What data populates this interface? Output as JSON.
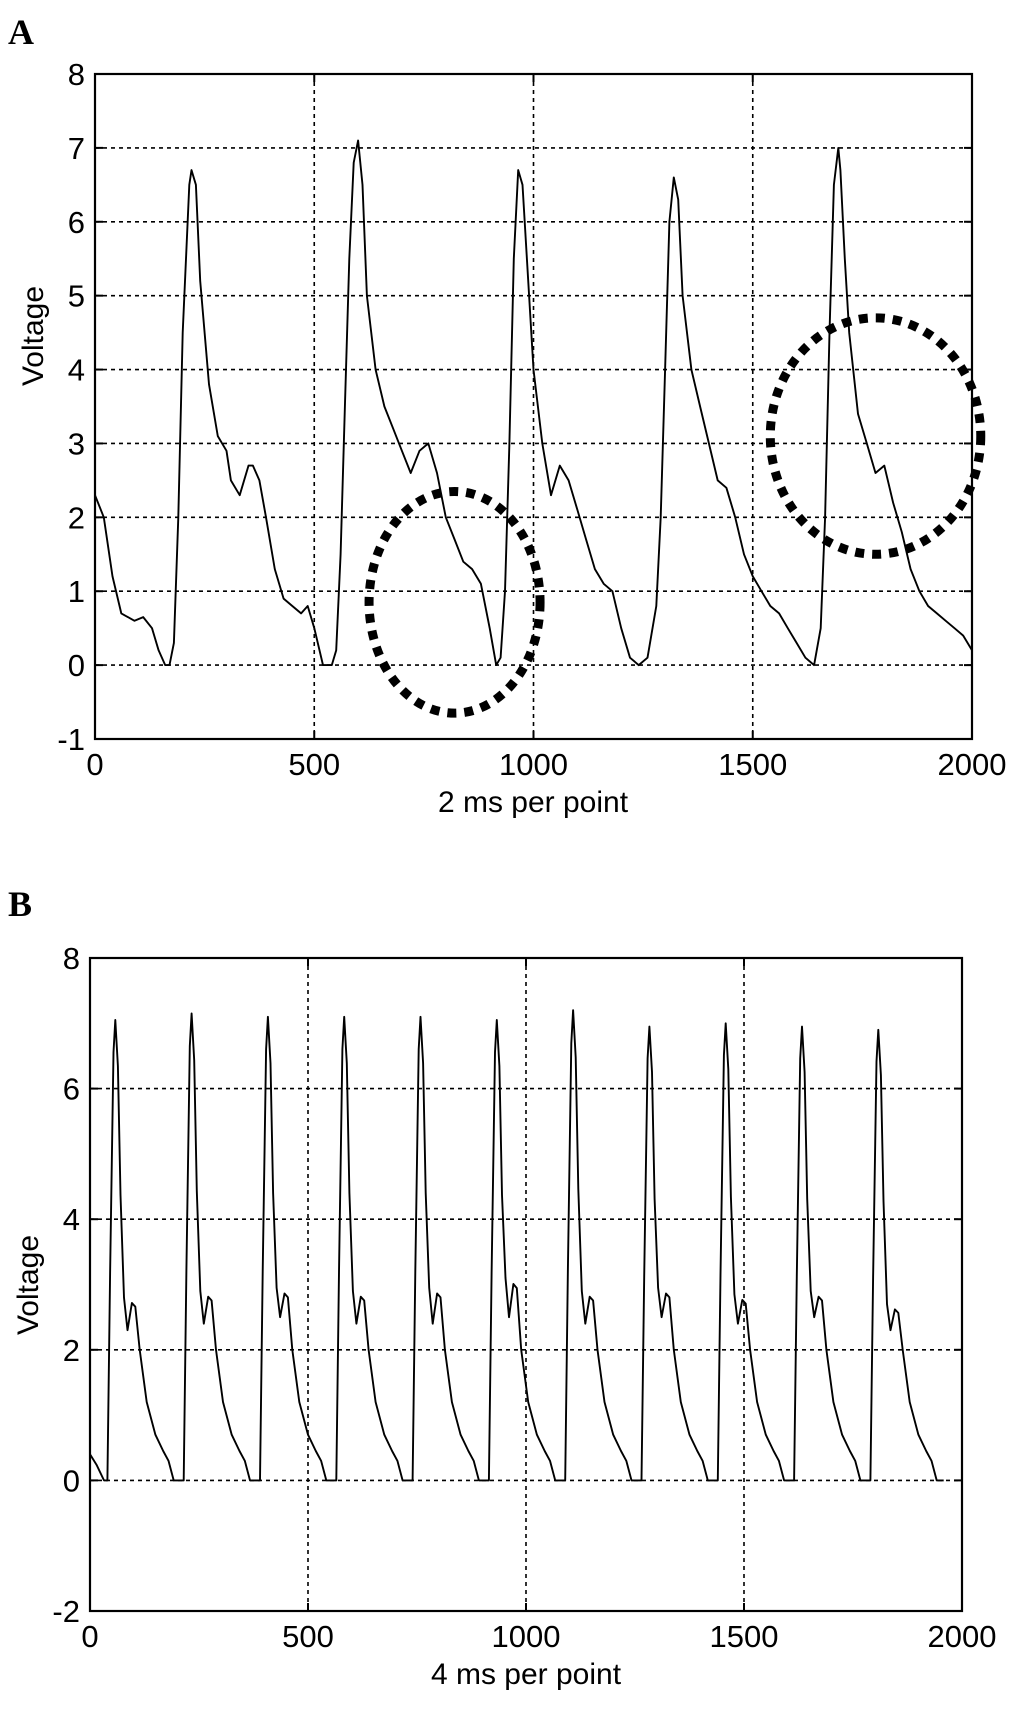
{
  "chart_data": [
    {
      "type": "line",
      "panel_label": "A",
      "xlabel": "2 ms per point",
      "ylabel": "Voltage",
      "xlim": [
        0,
        2000
      ],
      "ylim": [
        -1,
        8
      ],
      "xticks": [
        0,
        500,
        1000,
        1500,
        2000
      ],
      "yticks": [
        -1,
        0,
        1,
        2,
        3,
        4,
        5,
        6,
        7,
        8
      ],
      "grid": true,
      "series": [
        {
          "x": [
            0,
            20,
            40,
            60,
            90,
            110,
            130,
            145,
            160,
            170,
            180,
            190,
            200,
            215,
            220,
            230,
            240,
            260,
            280,
            300,
            310,
            330,
            350,
            360,
            375,
            390,
            410,
            430,
            450,
            470,
            485,
            500,
            520,
            540,
            550,
            560,
            570,
            580,
            590,
            600,
            610,
            620,
            640,
            660,
            680,
            700,
            720,
            740,
            760,
            780,
            800,
            820,
            840,
            860,
            880,
            900,
            915,
            925,
            935,
            945,
            955,
            965,
            975,
            990,
            1000,
            1020,
            1040,
            1060,
            1080,
            1100,
            1120,
            1140,
            1160,
            1180,
            1200,
            1220,
            1240,
            1260,
            1280,
            1290,
            1300,
            1310,
            1320,
            1330,
            1340,
            1360,
            1380,
            1400,
            1420,
            1440,
            1460,
            1480,
            1500,
            1520,
            1540,
            1560,
            1580,
            1600,
            1620,
            1640,
            1655,
            1665,
            1675,
            1685,
            1695,
            1700,
            1710,
            1720,
            1740,
            1760,
            1780,
            1800,
            1820,
            1840,
            1860,
            1880,
            1900,
            1920,
            1940,
            1960,
            1980,
            2000
          ],
          "y": [
            2.3,
            2.0,
            1.2,
            0.7,
            0.6,
            0.65,
            0.5,
            0.2,
            0.0,
            0.0,
            0.3,
            2.0,
            4.5,
            6.5,
            6.7,
            6.5,
            5.2,
            3.8,
            3.1,
            2.9,
            2.5,
            2.3,
            2.7,
            2.7,
            2.5,
            2.0,
            1.3,
            0.9,
            0.8,
            0.7,
            0.8,
            0.5,
            0.0,
            0.0,
            0.2,
            1.5,
            3.5,
            5.5,
            6.8,
            7.1,
            6.5,
            5.0,
            4.0,
            3.5,
            3.2,
            2.9,
            2.6,
            2.9,
            3.0,
            2.6,
            2.0,
            1.7,
            1.4,
            1.3,
            1.1,
            0.5,
            0.0,
            0.1,
            1.0,
            3.0,
            5.5,
            6.7,
            6.5,
            5.0,
            4.0,
            3.0,
            2.3,
            2.7,
            2.5,
            2.1,
            1.7,
            1.3,
            1.1,
            1.0,
            0.5,
            0.1,
            0.0,
            0.1,
            0.8,
            2.0,
            4.0,
            6.0,
            6.6,
            6.3,
            5.0,
            4.0,
            3.5,
            3.0,
            2.5,
            2.4,
            2.0,
            1.5,
            1.2,
            1.0,
            0.8,
            0.7,
            0.5,
            0.3,
            0.1,
            0.0,
            0.5,
            2.0,
            4.5,
            6.5,
            7.0,
            6.7,
            5.5,
            4.5,
            3.4,
            3.0,
            2.6,
            2.7,
            2.2,
            1.8,
            1.3,
            1.0,
            0.8,
            0.7,
            0.6,
            0.5,
            0.4,
            0.2
          ]
        }
      ],
      "annotations": [
        {
          "shape": "dotted-circle",
          "cx": 820,
          "cy": 0.85,
          "rx": 195,
          "ry": 1.5
        },
        {
          "shape": "dotted-circle",
          "cx": 1780,
          "cy": 3.1,
          "rx": 240,
          "ry": 1.6
        }
      ]
    },
    {
      "type": "line",
      "panel_label": "B",
      "xlabel": "4 ms per point",
      "ylabel": "Voltage",
      "xlim": [
        0,
        2000
      ],
      "ylim": [
        -2,
        8
      ],
      "xticks": [
        0,
        500,
        1000,
        1500,
        2000
      ],
      "yticks": [
        -2,
        0,
        2,
        4,
        6,
        8
      ],
      "grid": true,
      "series": [
        {
          "beat_starts": [
            40,
            215,
            390,
            565,
            740,
            915,
            1090,
            1265,
            1440,
            1615,
            1790
          ],
          "beat_peaks": [
            7.05,
            7.15,
            7.1,
            7.1,
            7.1,
            7.05,
            7.2,
            6.95,
            7.0,
            6.95,
            6.9
          ],
          "initial_value": 0.4,
          "baseline": 0.0,
          "notch_values": [
            2.3,
            2.4,
            2.5,
            2.4,
            2.4,
            2.5,
            2.4,
            2.5,
            2.4,
            2.5,
            2.3
          ],
          "hump_values": [
            2.8,
            2.9,
            2.95,
            2.9,
            2.95,
            3.1,
            2.9,
            2.95,
            2.85,
            2.9,
            2.7
          ]
        }
      ]
    }
  ]
}
